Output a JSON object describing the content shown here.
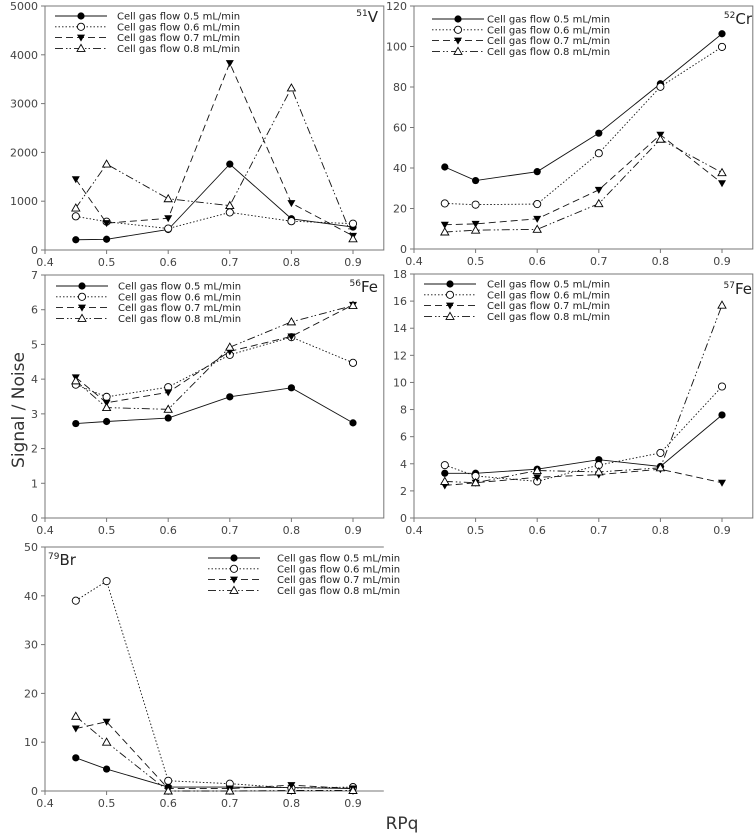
{
  "chart_data": {
    "type": "line",
    "ylabel": "Signal / Noise",
    "xlabel": "RPq",
    "legend_placement": "top-left (top-right for 79Br)",
    "grid": false,
    "x": [
      0.45,
      0.5,
      0.6,
      0.7,
      0.8,
      0.9
    ],
    "xticks": [
      "0.4",
      "0.5",
      "0.6",
      "0.7",
      "0.8",
      "0.9"
    ],
    "series_names": [
      "Cell gas flow 0.5 mL/min",
      "Cell gas flow 0.6 mL/min",
      "Cell gas flow 0.7 mL/min",
      "Cell gas flow 0.8 mL/min"
    ],
    "series_styles": [
      {
        "line": "solid",
        "marker": "filled-circle"
      },
      {
        "line": "dotted",
        "marker": "open-circle"
      },
      {
        "line": "dashed",
        "marker": "filled-down-triangle"
      },
      {
        "line": "dash-dot-dot",
        "marker": "open-up-triangle"
      }
    ],
    "panels": [
      {
        "mass": "51",
        "element": "V",
        "xlim": [
          0.4,
          0.95
        ],
        "ylim": [
          0,
          5000
        ],
        "yticks": [
          "0",
          "1000",
          "2000",
          "3000",
          "4000",
          "5000"
        ],
        "series": [
          [
            210,
            220,
            420,
            1760,
            640,
            470
          ],
          [
            690,
            580,
            440,
            770,
            590,
            540
          ],
          [
            1450,
            550,
            650,
            3830,
            960,
            290
          ],
          [
            860,
            1760,
            1050,
            910,
            3320,
            230
          ]
        ]
      },
      {
        "mass": "52",
        "element": "Cr",
        "xlim": [
          0.4,
          0.95
        ],
        "ylim": [
          0,
          120
        ],
        "yticks": [
          "0",
          "20",
          "40",
          "60",
          "80",
          "100",
          "120"
        ],
        "series": [
          [
            40.5,
            33.8,
            38.2,
            57.2,
            81.6,
            106.3
          ],
          [
            22.5,
            21.9,
            22.2,
            47.3,
            80.1,
            99.8
          ],
          [
            12,
            12.4,
            14.9,
            29.2,
            56.4,
            32.5
          ],
          [
            8.4,
            9.3,
            9.7,
            22.4,
            54.2,
            37.7
          ]
        ]
      },
      {
        "mass": "56",
        "element": "Fe",
        "xlim": [
          0.4,
          0.95
        ],
        "ylim": [
          0,
          7
        ],
        "yticks": [
          "0",
          "1",
          "2",
          "3",
          "4",
          "5",
          "6",
          "7"
        ],
        "series": [
          [
            2.72,
            2.78,
            2.88,
            3.49,
            3.75,
            2.74
          ],
          [
            3.84,
            3.49,
            3.77,
            4.7,
            5.21,
            4.47
          ],
          [
            4.05,
            3.32,
            3.62,
            4.8,
            5.23,
            6.14
          ],
          [
            3.95,
            3.18,
            3.13,
            4.92,
            5.65,
            6.12
          ]
        ]
      },
      {
        "mass": "57",
        "element": "Fe",
        "xlim": [
          0.4,
          0.95
        ],
        "ylim": [
          0,
          18
        ],
        "yticks": [
          "0",
          "2",
          "4",
          "6",
          "8",
          "10",
          "12",
          "14",
          "16",
          "18"
        ],
        "series": [
          [
            3.3,
            3.3,
            3.6,
            4.3,
            3.8,
            7.6
          ],
          [
            3.9,
            3.1,
            2.7,
            3.9,
            4.8,
            9.7
          ],
          [
            2.4,
            2.6,
            3.0,
            3.2,
            3.6,
            2.6
          ],
          [
            2.7,
            2.6,
            3.5,
            3.4,
            3.7,
            15.7
          ]
        ]
      },
      {
        "mass": "79",
        "element": "Br",
        "xlim": [
          0.4,
          0.95
        ],
        "ylim": [
          0,
          50
        ],
        "yticks": [
          "0",
          "10",
          "20",
          "30",
          "40",
          "50"
        ],
        "series": [
          [
            6.8,
            4.5,
            0.8,
            0.8,
            0.7,
            0.5
          ],
          [
            39,
            43,
            2.1,
            1.5,
            0.6,
            0.8
          ],
          [
            12.8,
            14.2,
            0.5,
            0.5,
            1.2,
            0.5
          ],
          [
            15.3,
            10,
            0,
            0,
            0.1,
            0.1
          ]
        ]
      }
    ]
  }
}
